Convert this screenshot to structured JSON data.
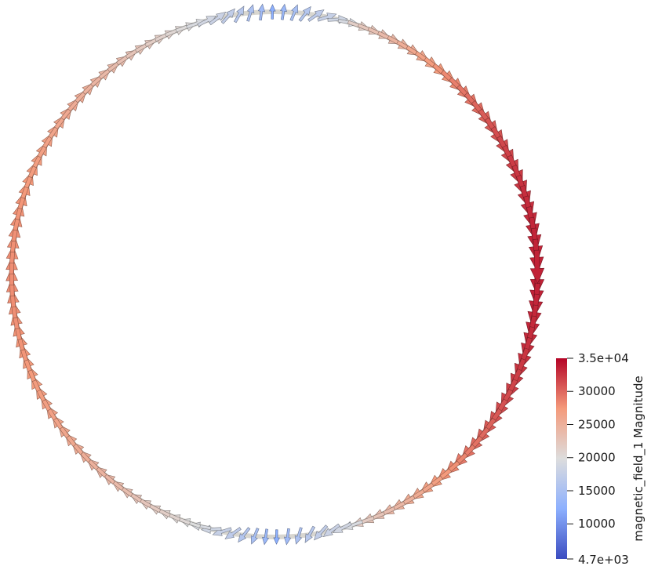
{
  "scene": {
    "description_name": "glyph field ring",
    "colormap": [
      "#3b4cc0",
      "#dddddd",
      "#b40426"
    ]
  },
  "colorbar": {
    "title": "magnetic_field_1 Magnitude",
    "min_label": "4.7e+03",
    "max_label": "3.5e+04",
    "min": 4700,
    "max": 35000,
    "ticks": [
      {
        "value": 30000,
        "label": "30000"
      },
      {
        "value": 25000,
        "label": "25000"
      },
      {
        "value": 20000,
        "label": "20000"
      },
      {
        "value": 15000,
        "label": "15000"
      },
      {
        "value": 10000,
        "label": "10000"
      }
    ]
  }
}
